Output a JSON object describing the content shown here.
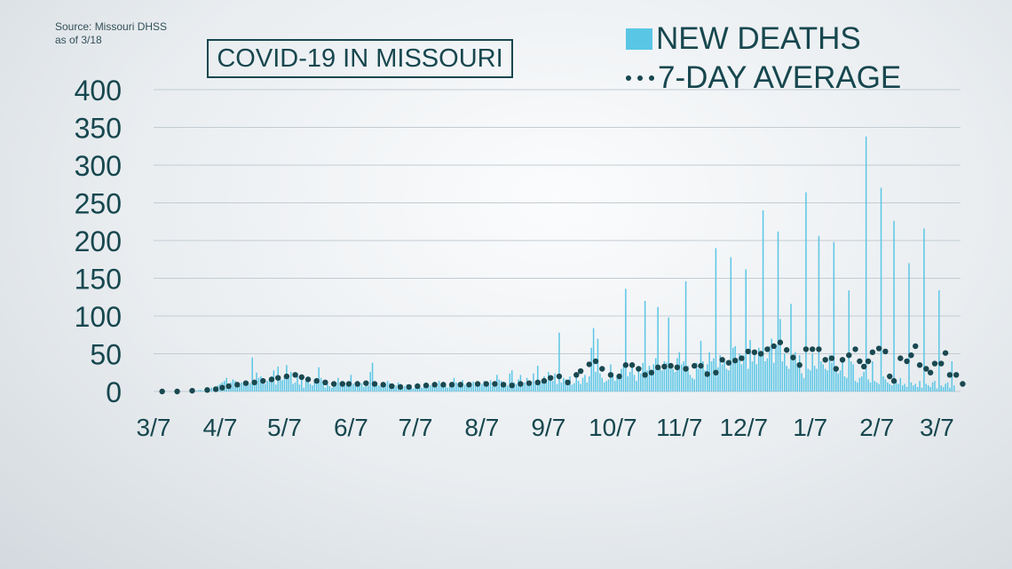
{
  "source": {
    "line1": "Source: Missouri DHSS",
    "line2": "as of 3/18"
  },
  "title": "COVID-19 IN MISSOURI",
  "legend": {
    "bars_label": "NEW DEATHS",
    "avg_label": "7-DAY AVERAGE"
  },
  "colors": {
    "bars": "#5ac6e6",
    "average": "#1a4850",
    "text": "#17474f",
    "grid": "#c3ccd2"
  },
  "chart_data": {
    "type": "bar",
    "start_date": "3/7",
    "end_date": "3/18",
    "ylim": [
      0,
      400
    ],
    "yticks": [
      0,
      50,
      100,
      150,
      200,
      250,
      300,
      350,
      400
    ],
    "xticks": [
      {
        "label": "3/7",
        "day": 0
      },
      {
        "label": "4/7",
        "day": 31
      },
      {
        "label": "5/7",
        "day": 61
      },
      {
        "label": "6/7",
        "day": 92
      },
      {
        "label": "7/7",
        "day": 122
      },
      {
        "label": "8/7",
        "day": 153
      },
      {
        "label": "9/7",
        "day": 184
      },
      {
        "label": "10/7",
        "day": 214
      },
      {
        "label": "11/7",
        "day": 245
      },
      {
        "label": "12/7",
        "day": 275
      },
      {
        "label": "1/7",
        "day": 306
      },
      {
        "label": "2/7",
        "day": 337
      },
      {
        "label": "3/7",
        "day": 365
      }
    ],
    "series": [
      {
        "name": "NEW DEATHS",
        "values": [
          0,
          0,
          0,
          0,
          0,
          0,
          0,
          0,
          0,
          0,
          0,
          0,
          0,
          0,
          0,
          0,
          0,
          0,
          0,
          1,
          1,
          2,
          2,
          1,
          1,
          3,
          2,
          5,
          4,
          6,
          8,
          10,
          12,
          14,
          18,
          10,
          12,
          16,
          14,
          9,
          10,
          12,
          11,
          7,
          13,
          11,
          45,
          12,
          25,
          18,
          20,
          12,
          10,
          14,
          16,
          20,
          28,
          9,
          33,
          16,
          15,
          20,
          35,
          18,
          26,
          10,
          12,
          24,
          9,
          18,
          5,
          14,
          20,
          10,
          8,
          16,
          12,
          32,
          18,
          14,
          5,
          10,
          7,
          5,
          9,
          12,
          18,
          10,
          14,
          12,
          10,
          7,
          22,
          10,
          8,
          14,
          9,
          11,
          6,
          12,
          8,
          26,
          38,
          9,
          12,
          8,
          7,
          10,
          9,
          14,
          11,
          6,
          8,
          8,
          12,
          10,
          5,
          7,
          9,
          6,
          8,
          4,
          9,
          11,
          6,
          5,
          7,
          12,
          9,
          8,
          10,
          6,
          7,
          14,
          9,
          12,
          10,
          5,
          7,
          8,
          18,
          12,
          10,
          8,
          15,
          9,
          10,
          7,
          11,
          13,
          9,
          12,
          8,
          10,
          14,
          9,
          11,
          15,
          7,
          10,
          22,
          16,
          14,
          9,
          12,
          8,
          24,
          28,
          12,
          10,
          16,
          22,
          9,
          12,
          18,
          14,
          9,
          24,
          11,
          34,
          14,
          16,
          20,
          12,
          26,
          18,
          14,
          24,
          10,
          78,
          12,
          18,
          16,
          14,
          20,
          9,
          11,
          24,
          14,
          10,
          18,
          22,
          12,
          20,
          58,
          84,
          26,
          70,
          24,
          18,
          12,
          14,
          16,
          36,
          24,
          14,
          22,
          18,
          30,
          34,
          136,
          20,
          26,
          36,
          22,
          14,
          30,
          24,
          38,
          120,
          28,
          34,
          26,
          36,
          44,
          112,
          30,
          28,
          40,
          38,
          98,
          34,
          30,
          26,
          44,
          52,
          36,
          40,
          146,
          34,
          22,
          18,
          16,
          38,
          30,
          67,
          40,
          28,
          36,
          52,
          40,
          44,
          190,
          32,
          48,
          36,
          40,
          30,
          28,
          178,
          58,
          60,
          44,
          50,
          36,
          48,
          162,
          30,
          68,
          40,
          52,
          36,
          58,
          48,
          240,
          40,
          44,
          60,
          70,
          38,
          62,
          212,
          96,
          40,
          50,
          34,
          30,
          116,
          42,
          52,
          38,
          48,
          24,
          18,
          264,
          30,
          28,
          50,
          34,
          30,
          206,
          40,
          36,
          30,
          28,
          48,
          38,
          198,
          30,
          24,
          28,
          44,
          20,
          18,
          134,
          40,
          36,
          14,
          12,
          18,
          20,
          26,
          338,
          16,
          12,
          40,
          14,
          12,
          10,
          270,
          20,
          16,
          12,
          10,
          8,
          226,
          14,
          10,
          18,
          8,
          10,
          6,
          170,
          12,
          8,
          10,
          6,
          14,
          5,
          216,
          10,
          8,
          6,
          12,
          14,
          4,
          134,
          8,
          6,
          10,
          12,
          5,
          40,
          8
        ]
      },
      {
        "name": "7-DAY AVERAGE",
        "points": [
          [
            4,
            0
          ],
          [
            11,
            0
          ],
          [
            18,
            1
          ],
          [
            25,
            2
          ],
          [
            29,
            3
          ],
          [
            32,
            5
          ],
          [
            35,
            7
          ],
          [
            39,
            9
          ],
          [
            43,
            11
          ],
          [
            47,
            12
          ],
          [
            51,
            14
          ],
          [
            55,
            16
          ],
          [
            58,
            18
          ],
          [
            62,
            20
          ],
          [
            66,
            22
          ],
          [
            69,
            19
          ],
          [
            72,
            16
          ],
          [
            76,
            14
          ],
          [
            80,
            12
          ],
          [
            84,
            10
          ],
          [
            88,
            10
          ],
          [
            91,
            10
          ],
          [
            95,
            10
          ],
          [
            99,
            11
          ],
          [
            103,
            10
          ],
          [
            107,
            9
          ],
          [
            111,
            7
          ],
          [
            115,
            6
          ],
          [
            119,
            6
          ],
          [
            123,
            7
          ],
          [
            127,
            8
          ],
          [
            131,
            9
          ],
          [
            135,
            9
          ],
          [
            139,
            9
          ],
          [
            143,
            9
          ],
          [
            147,
            9
          ],
          [
            151,
            10
          ],
          [
            155,
            10
          ],
          [
            159,
            10
          ],
          [
            163,
            9
          ],
          [
            167,
            8
          ],
          [
            171,
            10
          ],
          [
            175,
            11
          ],
          [
            179,
            12
          ],
          [
            182,
            14
          ],
          [
            185,
            18
          ],
          [
            189,
            20
          ],
          [
            193,
            12
          ],
          [
            197,
            22
          ],
          [
            199,
            27
          ],
          [
            203,
            36
          ],
          [
            206,
            40
          ],
          [
            209,
            30
          ],
          [
            213,
            22
          ],
          [
            217,
            20
          ],
          [
            220,
            35
          ],
          [
            223,
            35
          ],
          [
            226,
            30
          ],
          [
            229,
            22
          ],
          [
            232,
            25
          ],
          [
            235,
            32
          ],
          [
            238,
            33
          ],
          [
            241,
            34
          ],
          [
            244,
            32
          ],
          [
            248,
            30
          ],
          [
            252,
            34
          ],
          [
            255,
            34
          ],
          [
            258,
            23
          ],
          [
            262,
            25
          ],
          [
            265,
            42
          ],
          [
            268,
            38
          ],
          [
            271,
            41
          ],
          [
            274,
            44
          ],
          [
            277,
            53
          ],
          [
            280,
            52
          ],
          [
            283,
            50
          ],
          [
            286,
            56
          ],
          [
            289,
            60
          ],
          [
            292,
            65
          ],
          [
            295,
            55
          ],
          [
            298,
            45
          ],
          [
            301,
            35
          ],
          [
            304,
            56
          ],
          [
            307,
            56
          ],
          [
            310,
            56
          ],
          [
            313,
            42
          ],
          [
            316,
            44
          ],
          [
            318,
            30
          ],
          [
            321,
            42
          ],
          [
            324,
            48
          ],
          [
            327,
            56
          ],
          [
            329,
            40
          ],
          [
            331,
            33
          ],
          [
            333,
            40
          ],
          [
            335,
            52
          ],
          [
            338,
            57
          ],
          [
            341,
            53
          ],
          [
            343,
            20
          ],
          [
            345,
            14
          ],
          [
            348,
            44
          ],
          [
            351,
            40
          ],
          [
            353,
            48
          ],
          [
            355,
            60
          ],
          [
            357,
            35
          ],
          [
            360,
            30
          ],
          [
            362,
            25
          ],
          [
            364,
            37
          ],
          [
            367,
            37
          ],
          [
            369,
            51
          ],
          [
            371,
            22
          ],
          [
            374,
            22
          ],
          [
            377,
            10
          ]
        ]
      }
    ]
  }
}
